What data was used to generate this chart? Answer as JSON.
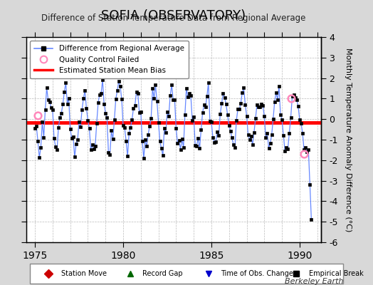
{
  "title": "SOFIA (OBSERVATORY)",
  "subtitle": "Difference of Station Temperature Data from Regional Average",
  "ylabel": "Monthly Temperature Anomaly Difference (°C)",
  "xlabel_ticks": [
    1975,
    1980,
    1985,
    1990
  ],
  "ylim": [
    -6,
    4
  ],
  "yticks_right": [
    -6,
    -5,
    -4,
    -3,
    -2,
    -1,
    0,
    1,
    2,
    3,
    4
  ],
  "xlim": [
    1974.5,
    1991.2
  ],
  "bias_line_y": -0.15,
  "background_color": "#d8d8d8",
  "plot_bg_color": "#ffffff",
  "line_color": "#6688ff",
  "bias_color": "#ff0000",
  "marker_color": "#000000",
  "qc_points": [
    [
      1975.17,
      0.18
    ],
    [
      1989.5,
      1.0
    ],
    [
      1990.25,
      -1.7
    ]
  ],
  "watermark": "Berkeley Earth",
  "bottom_legend": "♦ Station Move    ▲ Record Gap    ▼ Time of Obs. Change    ■ Empirical Break",
  "legend_colors": [
    "#cc0000",
    "#006600",
    "#0000cc",
    "#000000"
  ]
}
